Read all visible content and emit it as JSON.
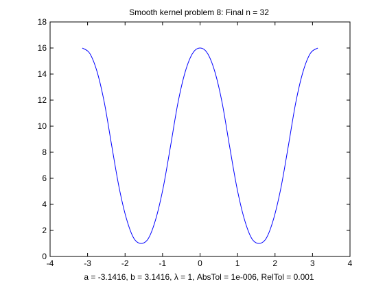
{
  "chart_data": {
    "type": "line",
    "title": "Smooth kernel problem 8:   Final n = 32",
    "xlabel": "a = -3.1416,   b = 3.1416,   λ = 1,   AbsTol = 1e-006,   RelTol = 0.001",
    "ylabel": "",
    "xlim": [
      -4,
      4
    ],
    "ylim": [
      0,
      18
    ],
    "xticks": [
      -4,
      -3,
      -2,
      -1,
      0,
      1,
      2,
      3,
      4
    ],
    "yticks": [
      0,
      2,
      4,
      6,
      8,
      10,
      12,
      14,
      16,
      18
    ],
    "grid": false,
    "line_color": "#0000ff",
    "series": [
      {
        "x": [
          -3.1416,
          -2.9452,
          -2.7489,
          -2.5525,
          -2.3562,
          -2.1598,
          -1.9635,
          -1.7671,
          -1.5708,
          -1.3744,
          -1.1781,
          -0.9817,
          -0.7854,
          -0.589,
          -0.3927,
          -0.1963,
          0,
          0.1963,
          0.3927,
          0.589,
          0.7854,
          0.9817,
          1.1781,
          1.3744,
          1.5708,
          1.7671,
          1.9635,
          2.1598,
          2.3562,
          2.5525,
          2.7489,
          2.9452,
          3.1416
        ],
        "y": [
          16.0,
          15.6,
          14.2,
          11.8,
          8.5,
          5.3,
          2.9,
          1.4,
          1.0,
          1.4,
          2.9,
          5.3,
          8.5,
          11.8,
          14.2,
          15.6,
          16.0,
          15.6,
          14.2,
          11.8,
          8.5,
          5.3,
          2.9,
          1.4,
          1.0,
          1.4,
          2.9,
          5.3,
          8.5,
          11.8,
          14.2,
          15.6,
          16.0
        ]
      }
    ]
  }
}
